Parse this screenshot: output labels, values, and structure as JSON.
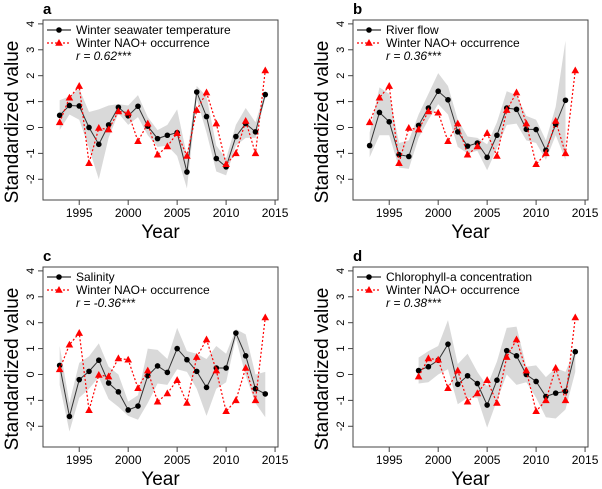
{
  "chart_data": [
    {
      "type": "line",
      "panel_label": "a",
      "xlabel": "Year",
      "ylabel": "Standardized value",
      "xlim": [
        1991.3,
        2015.3
      ],
      "ylim": [
        -2.8,
        4.15
      ],
      "xticks": [
        1995,
        2000,
        2005,
        2010,
        2015
      ],
      "yticks": [
        -2,
        -1,
        0,
        1,
        2,
        3,
        4
      ],
      "annotation": "r = 0.62***",
      "series": [
        {
          "name": "Winter seawater temperature",
          "style": "solid-black-dots",
          "color": "#000000",
          "x": [
            1993,
            1994,
            1995,
            1996,
            1997,
            1998,
            1999,
            2000,
            2001,
            2002,
            2003,
            2004,
            2005,
            2006,
            2007,
            2008,
            2009,
            2010,
            2011,
            2012,
            2013,
            2014
          ],
          "y": [
            0.47,
            0.85,
            0.83,
            0.0,
            -0.65,
            0.1,
            0.78,
            0.45,
            0.82,
            0.05,
            -0.43,
            -0.3,
            -0.2,
            -1.72,
            1.37,
            0.42,
            -1.2,
            -1.52,
            -0.35,
            0.15,
            -0.17,
            1.27
          ],
          "band_upper": [
            1.05,
            1.2,
            1.5,
            0.6,
            0.7,
            0.85,
            0.9,
            0.85,
            1.25,
            0.4,
            -0.1,
            0.1,
            0.7,
            -1.1,
            1.6,
            1.2,
            -0.7,
            -1.2,
            0.1,
            0.75,
            0.2,
            1.4
          ],
          "band_lower": [
            -0.1,
            0.5,
            0.3,
            -0.8,
            -2.0,
            -0.4,
            0.55,
            0.1,
            0.4,
            -0.3,
            -0.75,
            -0.7,
            -1.1,
            -2.35,
            1.1,
            -0.2,
            -1.7,
            -1.85,
            -0.7,
            -0.4,
            -0.4,
            1.15
          ]
        },
        {
          "name": "Winter NAO+ occurrence",
          "style": "dotted-red-triangles",
          "color": "#ff0000",
          "x": [
            1993,
            1994,
            1995,
            1996,
            1997,
            1998,
            1999,
            2000,
            2001,
            2002,
            2003,
            2004,
            2005,
            2006,
            2007,
            2008,
            2009,
            2010,
            2011,
            2012,
            2013,
            2014
          ],
          "y": [
            0.2,
            1.15,
            1.6,
            -1.38,
            -0.02,
            -0.08,
            0.62,
            0.57,
            -0.53,
            0.15,
            -1.05,
            -0.73,
            -0.22,
            -1.1,
            0.67,
            1.35,
            0.15,
            -1.42,
            -1.0,
            0.25,
            -1.0,
            2.2
          ]
        }
      ]
    },
    {
      "type": "line",
      "panel_label": "b",
      "xlabel": "Year",
      "ylabel": "Standardized value",
      "xlim": [
        1991.3,
        2015.3
      ],
      "ylim": [
        -2.8,
        4.15
      ],
      "xticks": [
        1995,
        2000,
        2005,
        2010,
        2015
      ],
      "yticks": [
        -2,
        -1,
        0,
        1,
        2,
        3,
        4
      ],
      "annotation": "r = 0.36***",
      "series": [
        {
          "name": "River flow",
          "style": "solid-black-dots",
          "color": "#000000",
          "x": [
            1993,
            1994,
            1995,
            1996,
            1997,
            1998,
            1999,
            2000,
            2001,
            2002,
            2003,
            2004,
            2005,
            2006,
            2007,
            2008,
            2009,
            2010,
            2011,
            2012,
            2013
          ],
          "y": [
            -0.7,
            0.58,
            0.22,
            -1.05,
            -1.12,
            0.08,
            0.75,
            1.4,
            1.07,
            -0.17,
            -0.72,
            -0.6,
            -1.15,
            -0.3,
            0.75,
            0.7,
            -0.07,
            -0.08,
            -0.88,
            0.12,
            1.05
          ],
          "band_upper": [
            -0.2,
            1.55,
            1.3,
            -0.6,
            -0.5,
            0.5,
            1.3,
            2.1,
            1.6,
            0.3,
            -0.35,
            -0.4,
            -0.65,
            0.2,
            1.4,
            1.25,
            0.45,
            0.3,
            -0.5,
            0.8,
            3.35
          ],
          "band_lower": [
            -1.15,
            -0.3,
            -0.3,
            -1.55,
            -1.6,
            -0.4,
            0.3,
            0.9,
            0.5,
            -0.75,
            -1.0,
            -0.9,
            -1.65,
            -0.8,
            0.1,
            0.15,
            -0.5,
            -0.6,
            -1.25,
            -0.3,
            -1.25
          ]
        },
        {
          "name": "Winter NAO+ occurrence",
          "style": "dotted-red-triangles",
          "color": "#ff0000",
          "x": [
            1993,
            1994,
            1995,
            1996,
            1997,
            1998,
            1999,
            2000,
            2001,
            2002,
            2003,
            2004,
            2005,
            2006,
            2007,
            2008,
            2009,
            2010,
            2011,
            2012,
            2013,
            2014
          ],
          "y": [
            0.2,
            1.15,
            1.6,
            -1.38,
            -0.02,
            -0.08,
            0.62,
            0.57,
            -0.53,
            0.15,
            -1.05,
            -0.73,
            -0.22,
            -1.1,
            0.67,
            1.35,
            0.15,
            -1.42,
            -1.0,
            0.25,
            -1.0,
            2.2
          ]
        }
      ]
    },
    {
      "type": "line",
      "panel_label": "c",
      "xlabel": "Year",
      "ylabel": "Standardized value",
      "xlim": [
        1991.3,
        2015.3
      ],
      "ylim": [
        -2.8,
        4.15
      ],
      "xticks": [
        1995,
        2000,
        2005,
        2010,
        2015
      ],
      "yticks": [
        -2,
        -1,
        0,
        1,
        2,
        3,
        4
      ],
      "annotation": "r = -0.36***",
      "series": [
        {
          "name": "Salinity",
          "style": "solid-black-dots",
          "color": "#000000",
          "x": [
            1993,
            1994,
            1995,
            1996,
            1997,
            1998,
            1999,
            2000,
            2001,
            2002,
            2003,
            2004,
            2005,
            2006,
            2007,
            2008,
            2009,
            2010,
            2011,
            2012,
            2013,
            2014
          ],
          "y": [
            0.35,
            -1.62,
            -0.2,
            0.12,
            0.55,
            -0.33,
            -0.67,
            -1.37,
            -1.22,
            -0.05,
            0.33,
            0.08,
            1.0,
            0.57,
            0.12,
            -0.5,
            0.25,
            0.25,
            1.6,
            0.72,
            -0.55,
            -0.75
          ],
          "band_upper": [
            1.1,
            -1.1,
            0.45,
            0.7,
            1.2,
            0.3,
            0.0,
            -1.05,
            -0.8,
            1.0,
            0.95,
            0.6,
            1.8,
            0.9,
            0.8,
            0.6,
            1.1,
            0.8,
            1.75,
            1.55,
            0.0,
            0.1
          ],
          "band_lower": [
            -0.4,
            -2.2,
            -0.9,
            -0.55,
            -0.1,
            -0.95,
            -1.25,
            -1.6,
            -1.75,
            -1.1,
            -0.35,
            -0.4,
            0.2,
            0.1,
            -0.55,
            -1.6,
            -0.55,
            -0.3,
            1.4,
            -0.05,
            -1.1,
            -1.65
          ]
        },
        {
          "name": "Winter NAO+ occurrence",
          "style": "dotted-red-triangles",
          "color": "#ff0000",
          "x": [
            1993,
            1994,
            1995,
            1996,
            1997,
            1998,
            1999,
            2000,
            2001,
            2002,
            2003,
            2004,
            2005,
            2006,
            2007,
            2008,
            2009,
            2010,
            2011,
            2012,
            2013,
            2014
          ],
          "y": [
            0.2,
            1.15,
            1.6,
            -1.38,
            -0.02,
            -0.08,
            0.62,
            0.57,
            -0.53,
            0.15,
            -1.05,
            -0.73,
            -0.22,
            -1.1,
            0.67,
            1.35,
            0.15,
            -1.42,
            -1.0,
            0.25,
            -1.0,
            2.2
          ]
        }
      ]
    },
    {
      "type": "line",
      "panel_label": "d",
      "xlabel": "Year",
      "ylabel": "Standardized value",
      "xlim": [
        1991.3,
        2015.3
      ],
      "ylim": [
        -2.8,
        4.15
      ],
      "xticks": [
        1995,
        2000,
        2005,
        2010,
        2015
      ],
      "yticks": [
        -2,
        -1,
        0,
        1,
        2,
        3,
        4
      ],
      "annotation": "r = 0.38***",
      "series": [
        {
          "name": "Chlorophyll-a concentration",
          "style": "solid-black-dots",
          "color": "#000000",
          "x": [
            1998,
            1999,
            2000,
            2001,
            2002,
            2003,
            2004,
            2005,
            2006,
            2007,
            2008,
            2009,
            2010,
            2011,
            2012,
            2013,
            2014
          ],
          "y": [
            0.15,
            0.3,
            0.55,
            1.17,
            -0.38,
            -0.05,
            -0.35,
            -1.18,
            -0.22,
            0.92,
            0.72,
            0.0,
            -0.27,
            -0.85,
            -0.72,
            -0.65,
            0.88
          ],
          "band_upper": [
            0.65,
            0.9,
            1.1,
            2.1,
            0.4,
            0.8,
            0.1,
            -0.45,
            0.5,
            1.8,
            1.85,
            0.3,
            0.35,
            -0.1,
            0.25,
            0.1,
            1.0
          ],
          "band_lower": [
            -0.35,
            -0.3,
            0.0,
            0.2,
            -1.15,
            -0.9,
            -0.9,
            -2.05,
            -1.0,
            0.0,
            -0.4,
            -0.3,
            -0.9,
            -1.65,
            -1.7,
            -1.35,
            0.1
          ]
        },
        {
          "name": "Winter NAO+ occurrence",
          "style": "dotted-red-triangles",
          "color": "#ff0000",
          "x": [
            1998,
            1999,
            2000,
            2001,
            2002,
            2003,
            2004,
            2005,
            2006,
            2007,
            2008,
            2009,
            2010,
            2011,
            2012,
            2013,
            2014
          ],
          "y": [
            -0.08,
            0.62,
            0.57,
            -0.53,
            0.15,
            -1.05,
            -0.73,
            -0.22,
            -1.1,
            0.67,
            1.35,
            0.15,
            -1.42,
            -1.0,
            0.25,
            -1.0,
            2.2
          ]
        }
      ]
    }
  ],
  "colors": {
    "band": "#d9d9d9",
    "primary": "#000000",
    "nao": "#ff0000"
  }
}
